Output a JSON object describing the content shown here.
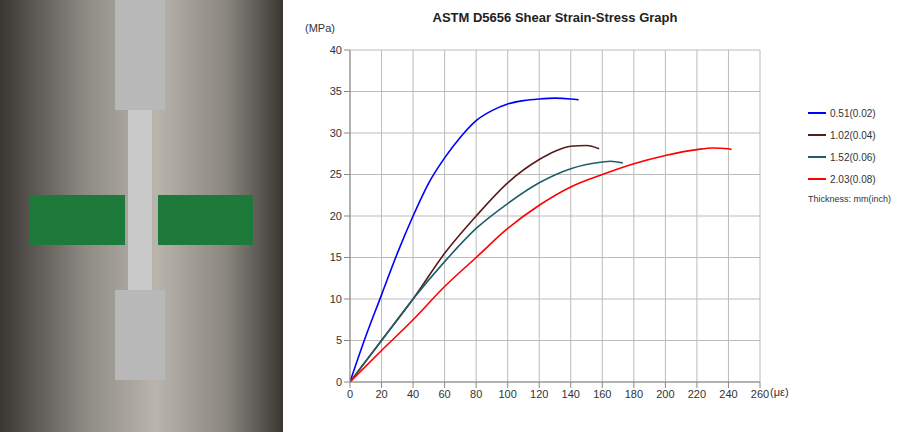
{
  "chart_data": {
    "type": "line",
    "title": "ASTM D5656 Shear Strain-Stress Graph",
    "y_label": "(MPa)",
    "x_label": "(με)",
    "legend_title": "Thickness: mm(inch)",
    "legend": "right",
    "grid": true,
    "xlim": [
      0,
      260
    ],
    "xticks": [
      0,
      20,
      40,
      60,
      80,
      100,
      120,
      140,
      160,
      180,
      200,
      220,
      240,
      260
    ],
    "ylim": [
      0,
      40
    ],
    "yticks": [
      0,
      5,
      10,
      15,
      20,
      25,
      30,
      35,
      40
    ],
    "series": [
      {
        "name": "0.51(0.02)",
        "color": "#0000ff",
        "x": [
          0,
          10,
          20,
          30,
          40,
          50,
          60,
          70,
          80,
          90,
          100,
          110,
          120,
          130,
          140,
          145
        ],
        "values": [
          0,
          5.5,
          10.5,
          15.5,
          20,
          24,
          27,
          29.5,
          31.5,
          32.7,
          33.5,
          33.9,
          34.1,
          34.2,
          34.1,
          34.0
        ]
      },
      {
        "name": "1.02(0.04)",
        "color": "#5a1a1a",
        "x": [
          0,
          20,
          40,
          60,
          80,
          100,
          120,
          130,
          140,
          150,
          158
        ],
        "values": [
          0,
          5,
          10,
          15.5,
          20,
          24,
          26.8,
          27.8,
          28.4,
          28.5,
          28.1
        ]
      },
      {
        "name": "1.52(0.06)",
        "color": "#1f5f6a",
        "x": [
          0,
          20,
          40,
          60,
          80,
          100,
          120,
          140,
          160,
          165,
          173
        ],
        "values": [
          0,
          5,
          10,
          14.5,
          18.5,
          21.5,
          24,
          25.7,
          26.5,
          26.6,
          26.4
        ]
      },
      {
        "name": "2.03(0.08)",
        "color": "#ff0000",
        "x": [
          0,
          20,
          40,
          60,
          80,
          100,
          120,
          140,
          160,
          180,
          200,
          220,
          230,
          240,
          242
        ],
        "values": [
          0,
          3.8,
          7.5,
          11.5,
          15,
          18.5,
          21.3,
          23.5,
          25,
          26.3,
          27.3,
          28,
          28.2,
          28.1,
          28.0
        ]
      }
    ]
  }
}
